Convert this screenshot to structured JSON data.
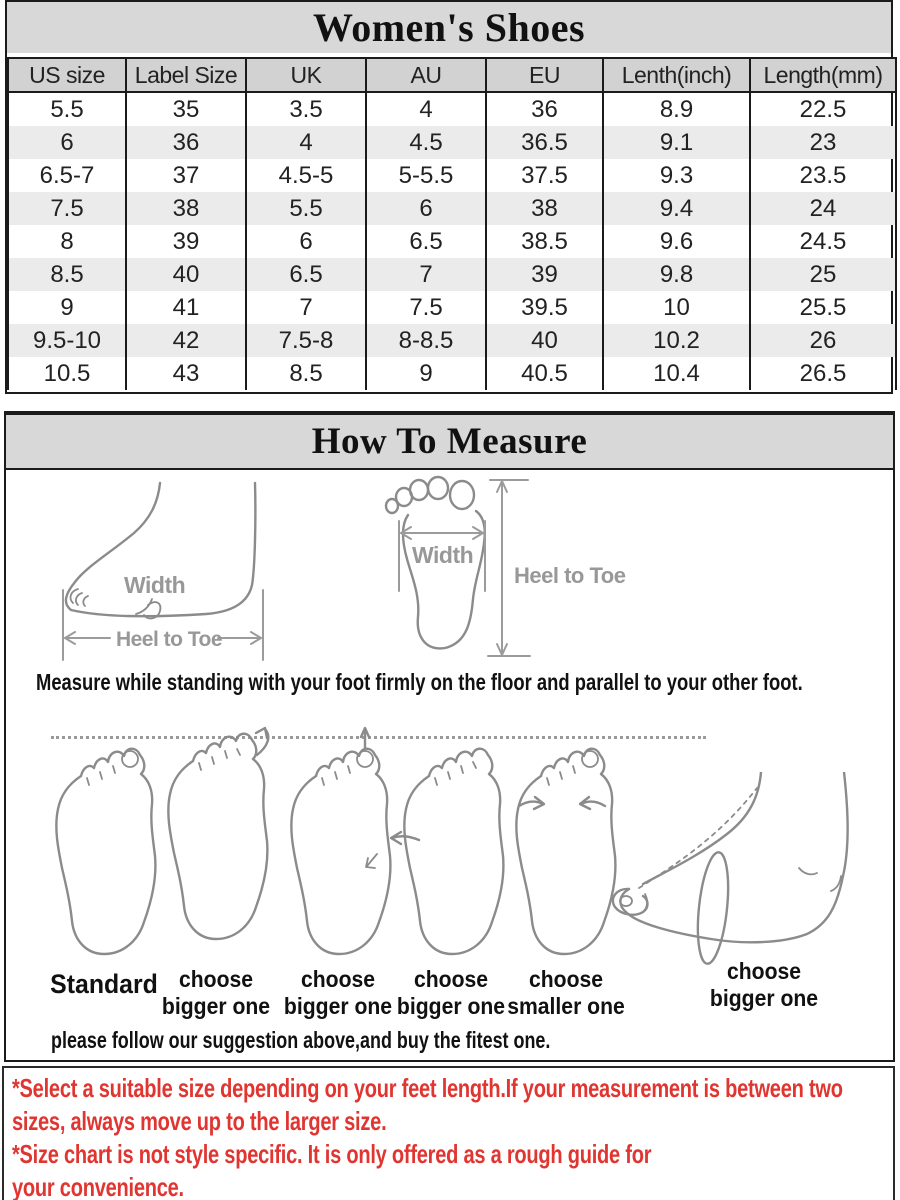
{
  "size_chart": {
    "title": "Women's Shoes",
    "title_bg": "#d8d8d8",
    "header_bg": "#d2d2d2",
    "stripe_bg": "#ebebeb",
    "headers": [
      "US size",
      "Label Size",
      "UK",
      "AU",
      "EU",
      "Lenth(inch)",
      "Length(mm)"
    ],
    "rows": [
      [
        "5.5",
        "35",
        "3.5",
        "4",
        "36",
        "8.9",
        "22.5"
      ],
      [
        "6",
        "36",
        "4",
        "4.5",
        "36.5",
        "9.1",
        "23"
      ],
      [
        "6.5-7",
        "37",
        "4.5-5",
        "5-5.5",
        "37.5",
        "9.3",
        "23.5"
      ],
      [
        "7.5",
        "38",
        "5.5",
        "6",
        "38",
        "9.4",
        "24"
      ],
      [
        "8",
        "39",
        "6",
        "6.5",
        "38.5",
        "9.6",
        "24.5"
      ],
      [
        "8.5",
        "40",
        "6.5",
        "7",
        "39",
        "9.8",
        "25"
      ],
      [
        "9",
        "41",
        "7",
        "7.5",
        "39.5",
        "10",
        "25.5"
      ],
      [
        "9.5-10",
        "42",
        "7.5-8",
        "8-8.5",
        "40",
        "10.2",
        "26"
      ],
      [
        "10.5",
        "43",
        "8.5",
        "9",
        "40.5",
        "10.4",
        "26.5"
      ]
    ]
  },
  "measure": {
    "title": "How To Measure",
    "side_diagram": {
      "width_label": "Width",
      "length_label": "Heel to Toe"
    },
    "top_diagram": {
      "width_label": "Width",
      "length_label": "Heel to Toe"
    },
    "note": "Measure while standing with your foot firmly on the floor and parallel to your other foot.",
    "captions": [
      {
        "line1": "Standard",
        "line2": ""
      },
      {
        "line1": "choose",
        "line2": "bigger one"
      },
      {
        "line1": "choose",
        "line2": "bigger one"
      },
      {
        "line1": "choose",
        "line2": "bigger one"
      },
      {
        "line1": "choose",
        "line2": "smaller one"
      },
      {
        "line1": "choose",
        "line2": "bigger one"
      }
    ],
    "suggestion": "please follow our suggestion above,and buy the fitest one."
  },
  "footnotes": {
    "color": "#e03530",
    "lines": [
      "*Select a suitable size depending on your feet length.If your measurement is between two",
      "sizes, always move up to the larger size.",
      "*Size chart is not style specific. It is only offered as a rough guide for",
      "your convenience."
    ]
  }
}
